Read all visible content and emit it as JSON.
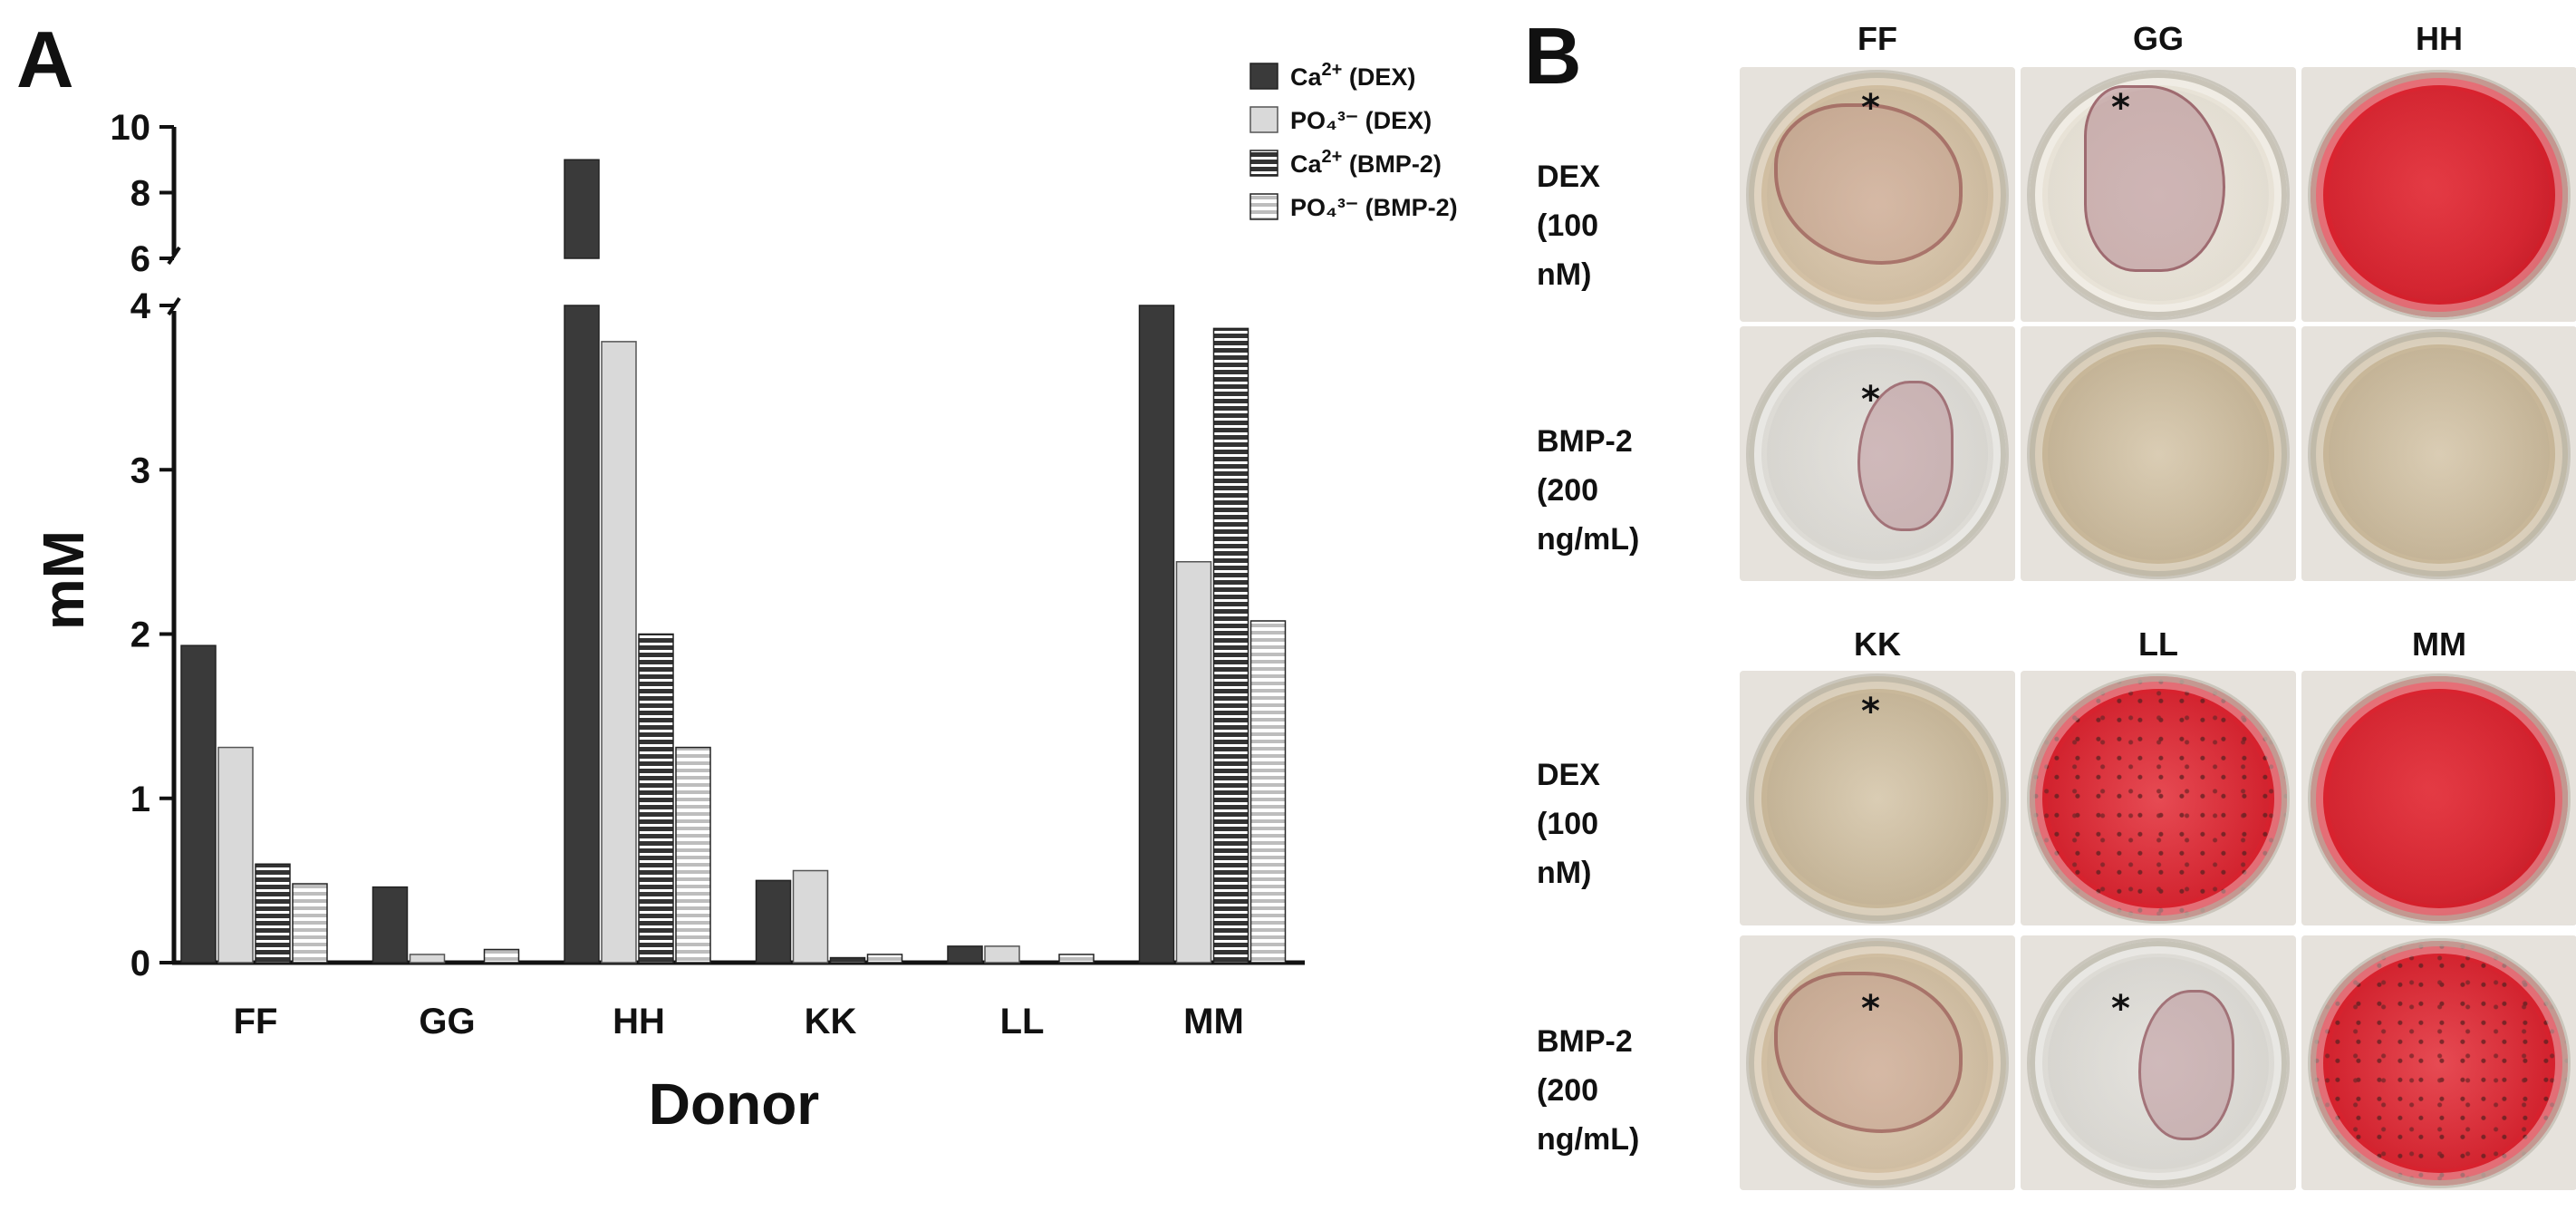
{
  "panelA": {
    "letter": "A",
    "chart_data": {
      "type": "bar",
      "categories": [
        "FF",
        "GG",
        "HH",
        "KK",
        "LL",
        "MM"
      ],
      "xlabel": "Donor",
      "ylabel": "mM",
      "ylim": [
        0,
        10
      ],
      "axis_break": {
        "lower": [
          0,
          4
        ],
        "upper": [
          6,
          10
        ]
      },
      "yticks_lower": [
        "0",
        "1",
        "2",
        "3",
        "4"
      ],
      "yticks_upper": [
        "6",
        "8",
        "10"
      ],
      "series": [
        {
          "name": "Ca2+ (DEX)",
          "values": [
            1.93,
            0.46,
            9.0,
            0.5,
            0.1,
            4.0
          ],
          "fill": "#3a3a3a",
          "pattern": "solid"
        },
        {
          "name": "PO43- (DEX)",
          "values": [
            1.31,
            0.05,
            3.78,
            0.56,
            0.1,
            2.44
          ],
          "fill": "#d9d9d9",
          "pattern": "solid"
        },
        {
          "name": "Ca2+ (BMP-2)",
          "values": [
            0.6,
            0.0,
            2.0,
            0.03,
            0.0,
            3.86
          ],
          "fill": "#3a3a3a",
          "pattern": "hstripe-dark"
        },
        {
          "name": "PO43- (BMP-2)",
          "values": [
            0.48,
            0.08,
            1.31,
            0.05,
            0.05,
            2.08
          ],
          "fill": "#d9d9d9",
          "pattern": "hstripe-light"
        }
      ],
      "legend": {
        "position": "top-right",
        "entries": [
          {
            "base": "Ca",
            "sup": "2+",
            "suffix": " (DEX)"
          },
          {
            "base": "PO₄³⁻",
            "sup": "",
            "suffix": " (DEX)"
          },
          {
            "base": "Ca",
            "sup": "2+",
            "suffix": " (BMP-2)"
          },
          {
            "base": "PO₄³⁻",
            "sup": "",
            "suffix": " (BMP-2)"
          }
        ]
      }
    }
  },
  "panelB": {
    "letter": "B",
    "top_block": {
      "columns": [
        "FF",
        "GG",
        "HH"
      ],
      "rows": [
        {
          "line1": "DEX",
          "line2": "(100 nM)"
        },
        {
          "line1": "BMP-2",
          "line2": "(200 ng/mL)"
        }
      ],
      "wells": [
        {
          "stain": "sheet-tan",
          "asterisk": "*"
        },
        {
          "stain": "sheet-pale",
          "asterisk": "*"
        },
        {
          "stain": "red",
          "asterisk": ""
        },
        {
          "stain": "sheet-clear",
          "asterisk": "*"
        },
        {
          "stain": "tan",
          "asterisk": ""
        },
        {
          "stain": "tan",
          "asterisk": ""
        }
      ]
    },
    "bottom_block": {
      "columns": [
        "KK",
        "LL",
        "MM"
      ],
      "rows": [
        {
          "line1": "DEX",
          "line2": "(100 nM)"
        },
        {
          "line1": "BMP-2",
          "line2": "(200 ng/mL)"
        }
      ],
      "wells": [
        {
          "stain": "tan",
          "asterisk": "*"
        },
        {
          "stain": "red-speckled",
          "asterisk": ""
        },
        {
          "stain": "red",
          "asterisk": ""
        },
        {
          "stain": "sheet-tan",
          "asterisk": "*"
        },
        {
          "stain": "sheet-clear",
          "asterisk": "*"
        },
        {
          "stain": "red-speckled",
          "asterisk": ""
        }
      ]
    },
    "colors": {
      "red": "#d8222e",
      "tan": "#c9b89a",
      "clear": "#e3e1dc",
      "sheet": "#b58a7e"
    }
  }
}
